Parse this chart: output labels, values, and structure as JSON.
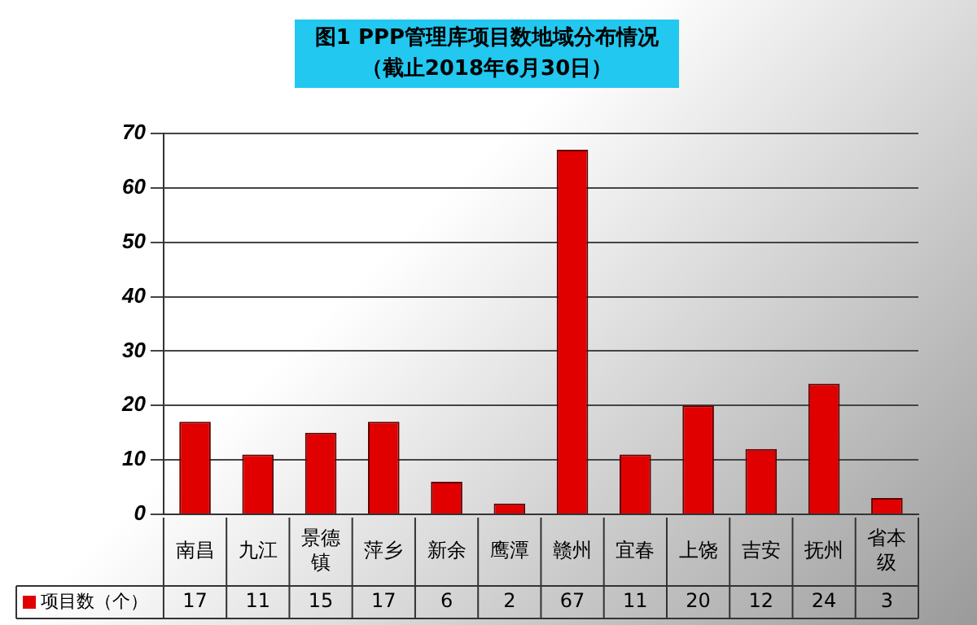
{
  "chart_data": {
    "type": "bar",
    "title": "图1 PPP管理库项目数地域分布情况",
    "subtitle": "（截止2018年6月30日）",
    "categories": [
      "南昌",
      "九江",
      "景德镇",
      "萍乡",
      "新余",
      "鹰潭",
      "赣州",
      "宜春",
      "上饶",
      "吉安",
      "抚州",
      "省本级"
    ],
    "series": [
      {
        "name": "项目数（个）",
        "color": "#e00000",
        "values": [
          17,
          11,
          15,
          17,
          6,
          2,
          67,
          11,
          20,
          12,
          24,
          3
        ]
      }
    ],
    "ylim": [
      0,
      70
    ],
    "yticks": [
      0,
      10,
      20,
      30,
      40,
      50,
      60,
      70
    ],
    "grid": "y",
    "legend": "bottom left",
    "data_labels": true
  }
}
